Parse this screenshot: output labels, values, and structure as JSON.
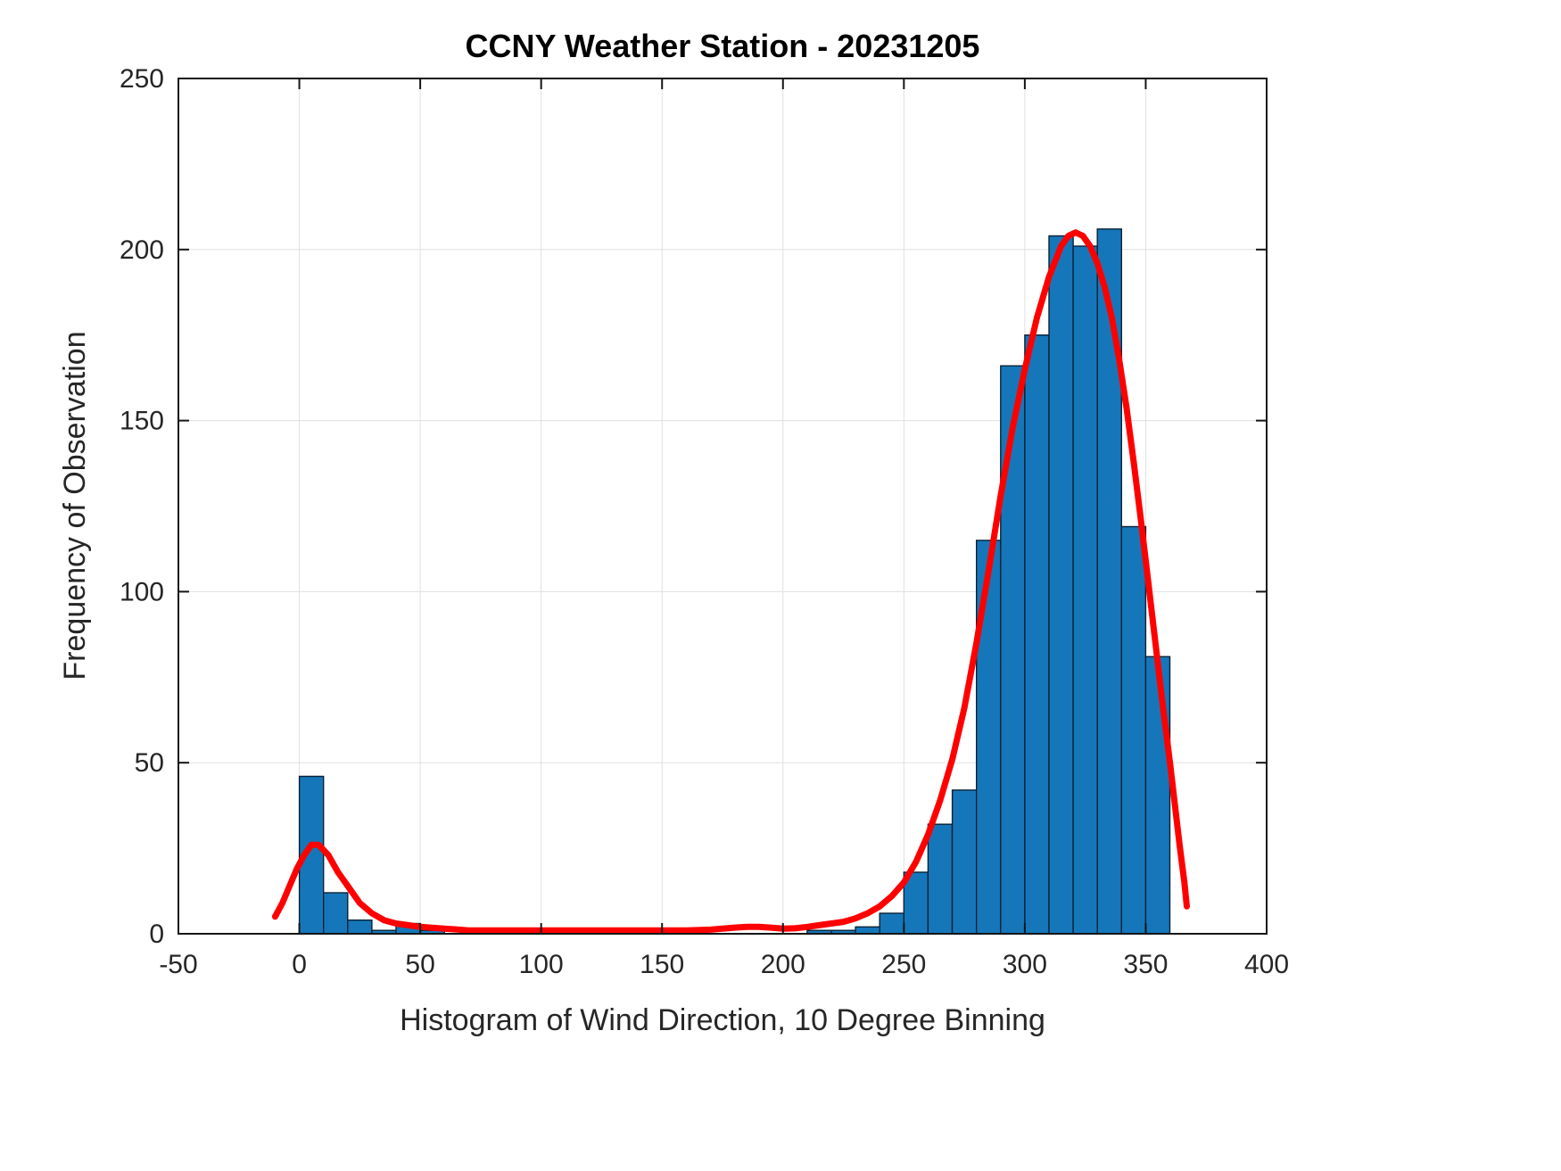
{
  "chart_data": {
    "type": "bar",
    "subtype": "histogram-with-fit-curve",
    "title": "CCNY Weather Station - 20231205",
    "xlabel": "Histogram of Wind Direction, 10 Degree Binning",
    "ylabel": "Frequency of Observation",
    "xlim": [
      -50,
      400
    ],
    "ylim": [
      0,
      250
    ],
    "xticks": [
      -50,
      0,
      50,
      100,
      150,
      200,
      250,
      300,
      350,
      400
    ],
    "yticks": [
      0,
      50,
      100,
      150,
      200,
      250
    ],
    "grid": true,
    "legend": "none",
    "bin_width": 10,
    "bar_color": "#1577B9",
    "bar_edge_color": "#0b2236",
    "curve_color": "#FF0000",
    "grid_color": "#e0e0e0",
    "axes_color": "#151515",
    "bins": [
      {
        "start": 0,
        "count": 46
      },
      {
        "start": 10,
        "count": 12
      },
      {
        "start": 20,
        "count": 4
      },
      {
        "start": 30,
        "count": 1
      },
      {
        "start": 40,
        "count": 3
      },
      {
        "start": 50,
        "count": 1
      },
      {
        "start": 60,
        "count": 0
      },
      {
        "start": 70,
        "count": 0
      },
      {
        "start": 80,
        "count": 0
      },
      {
        "start": 90,
        "count": 0
      },
      {
        "start": 100,
        "count": 0
      },
      {
        "start": 110,
        "count": 0
      },
      {
        "start": 120,
        "count": 0
      },
      {
        "start": 130,
        "count": 0
      },
      {
        "start": 140,
        "count": 0
      },
      {
        "start": 150,
        "count": 0
      },
      {
        "start": 160,
        "count": 0
      },
      {
        "start": 170,
        "count": 0
      },
      {
        "start": 180,
        "count": 0
      },
      {
        "start": 190,
        "count": 0
      },
      {
        "start": 200,
        "count": 0
      },
      {
        "start": 210,
        "count": 1
      },
      {
        "start": 220,
        "count": 1
      },
      {
        "start": 230,
        "count": 2
      },
      {
        "start": 240,
        "count": 6
      },
      {
        "start": 250,
        "count": 18
      },
      {
        "start": 260,
        "count": 32
      },
      {
        "start": 270,
        "count": 42
      },
      {
        "start": 280,
        "count": 115
      },
      {
        "start": 290,
        "count": 166
      },
      {
        "start": 300,
        "count": 175
      },
      {
        "start": 310,
        "count": 204
      },
      {
        "start": 320,
        "count": 201
      },
      {
        "start": 330,
        "count": 206
      },
      {
        "start": 340,
        "count": 119
      },
      {
        "start": 350,
        "count": 81
      }
    ],
    "fit_curve": [
      [
        -10,
        5
      ],
      [
        -7,
        9
      ],
      [
        -4,
        14
      ],
      [
        -1,
        19
      ],
      [
        2,
        23
      ],
      [
        5,
        26
      ],
      [
        8,
        26
      ],
      [
        12,
        23
      ],
      [
        16,
        18
      ],
      [
        20,
        14
      ],
      [
        25,
        9
      ],
      [
        30,
        6
      ],
      [
        35,
        4
      ],
      [
        40,
        3
      ],
      [
        45,
        2.5
      ],
      [
        50,
        2
      ],
      [
        60,
        1.5
      ],
      [
        70,
        1
      ],
      [
        80,
        1
      ],
      [
        90,
        1
      ],
      [
        100,
        1
      ],
      [
        110,
        1
      ],
      [
        120,
        1
      ],
      [
        130,
        1
      ],
      [
        140,
        1
      ],
      [
        150,
        1
      ],
      [
        160,
        1
      ],
      [
        170,
        1.2
      ],
      [
        180,
        1.8
      ],
      [
        185,
        2
      ],
      [
        190,
        2
      ],
      [
        195,
        1.8
      ],
      [
        200,
        1.5
      ],
      [
        205,
        1.6
      ],
      [
        210,
        2
      ],
      [
        215,
        2.5
      ],
      [
        220,
        3
      ],
      [
        225,
        3.5
      ],
      [
        230,
        4.5
      ],
      [
        235,
        6
      ],
      [
        240,
        8
      ],
      [
        245,
        11
      ],
      [
        250,
        15
      ],
      [
        255,
        21
      ],
      [
        260,
        29
      ],
      [
        265,
        39
      ],
      [
        270,
        51
      ],
      [
        275,
        66
      ],
      [
        280,
        85
      ],
      [
        285,
        106
      ],
      [
        290,
        128
      ],
      [
        295,
        148
      ],
      [
        300,
        165
      ],
      [
        305,
        180
      ],
      [
        310,
        192
      ],
      [
        315,
        201
      ],
      [
        318,
        204
      ],
      [
        321,
        205
      ],
      [
        324,
        204
      ],
      [
        327,
        201
      ],
      [
        330,
        196
      ],
      [
        333,
        189
      ],
      [
        336,
        180
      ],
      [
        339,
        168
      ],
      [
        342,
        154
      ],
      [
        345,
        138
      ],
      [
        348,
        121
      ],
      [
        351,
        103
      ],
      [
        354,
        85
      ],
      [
        357,
        67
      ],
      [
        360,
        50
      ],
      [
        362,
        38
      ],
      [
        364,
        26
      ],
      [
        366,
        15
      ],
      [
        367,
        8
      ]
    ]
  }
}
